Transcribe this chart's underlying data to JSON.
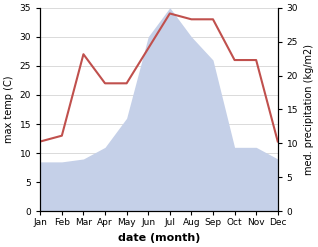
{
  "months": [
    "Jan",
    "Feb",
    "Mar",
    "Apr",
    "May",
    "Jun",
    "Jul",
    "Aug",
    "Sep",
    "Oct",
    "Nov",
    "Dec"
  ],
  "temperature": [
    12,
    13,
    27,
    22,
    22,
    28,
    34,
    33,
    33,
    26,
    26,
    12
  ],
  "precipitation": [
    8.5,
    8.5,
    9,
    11,
    16,
    30,
    35,
    30,
    26,
    11,
    11,
    9
  ],
  "temp_color": "#c0504d",
  "precip_fill_color": "#c5d0e8",
  "temp_ylim": [
    0,
    35
  ],
  "precip_ylim": [
    0,
    30
  ],
  "temp_yticks": [
    0,
    5,
    10,
    15,
    20,
    25,
    30,
    35
  ],
  "precip_yticks": [
    0,
    5,
    10,
    15,
    20,
    25,
    30
  ],
  "ylabel_left": "max temp (C)",
  "ylabel_right": "med. precipitation (kg/m2)",
  "xlabel": "date (month)",
  "bg_color": "#ffffff",
  "axis_fontsize": 7.0,
  "tick_fontsize": 6.5,
  "xlabel_fontsize": 8.0
}
